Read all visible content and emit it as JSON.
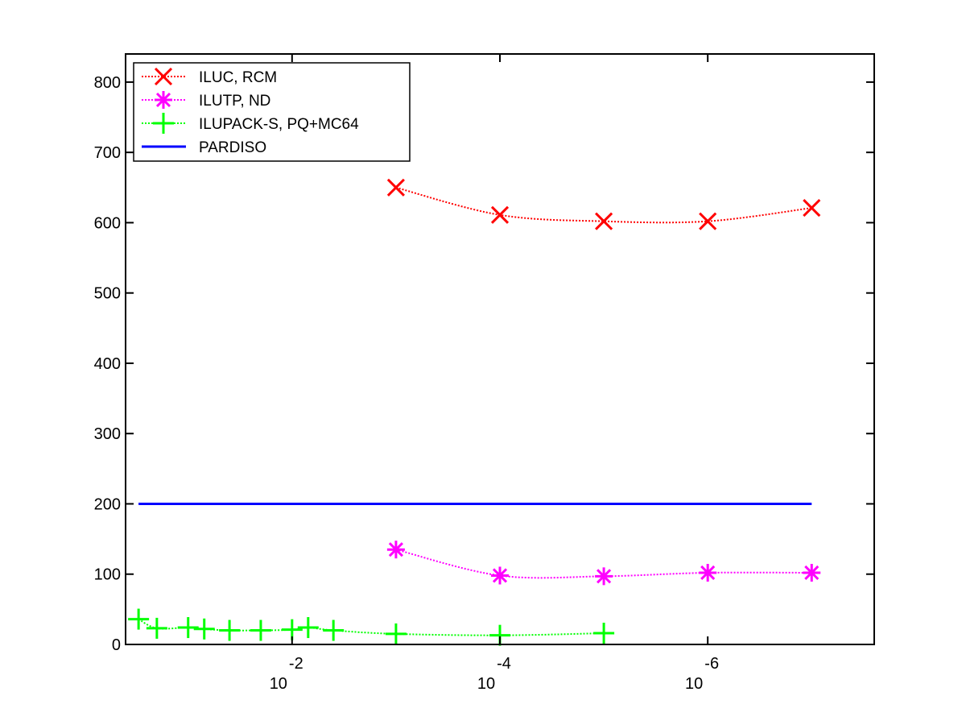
{
  "chart_data": {
    "type": "line",
    "title": "",
    "xlabel": "",
    "ylabel": "",
    "x_scale": "log-reversed",
    "xlim": [
      0.4,
      2.5e-08
    ],
    "ylim": [
      0,
      840
    ],
    "yticks": [
      0,
      100,
      200,
      300,
      400,
      500,
      600,
      700,
      800
    ],
    "xticks": [
      {
        "value": 0.01,
        "base": "10",
        "exponent": "-2"
      },
      {
        "value": 0.0001,
        "base": "10",
        "exponent": "-4"
      },
      {
        "value": 1e-06,
        "base": "10",
        "exponent": "-6"
      }
    ],
    "grid": false,
    "legend_position": "top-left",
    "series": [
      {
        "name": "ILUC, RCM",
        "color": "#ff0000",
        "marker": "x",
        "line_style": "dotted",
        "x": [
          0.001,
          0.0001,
          1e-05,
          1e-06,
          1e-07
        ],
        "y": [
          650,
          611,
          602,
          602,
          621
        ]
      },
      {
        "name": "ILUTP,  ND",
        "color": "#ff00ff",
        "marker": "star",
        "line_style": "dotted",
        "x": [
          0.001,
          0.0001,
          1e-05,
          1e-06,
          1e-07
        ],
        "y": [
          135,
          98,
          97,
          102,
          102
        ]
      },
      {
        "name": "ILUPACK-S, PQ+MC64",
        "color": "#00ff00",
        "marker": "plus",
        "line_style": "dotted",
        "x": [
          0.3,
          0.2,
          0.1,
          0.07,
          0.04,
          0.02,
          0.01,
          0.007,
          0.004,
          0.001,
          0.0001,
          1e-05
        ],
        "y": [
          36,
          23,
          24,
          22,
          20,
          20,
          21,
          24,
          20,
          15,
          13,
          16
        ]
      },
      {
        "name": "PARDISO",
        "color": "#0000ff",
        "marker": "none",
        "line_style": "solid",
        "x": [
          0.3,
          1e-07
        ],
        "y": [
          200,
          200
        ]
      }
    ]
  }
}
